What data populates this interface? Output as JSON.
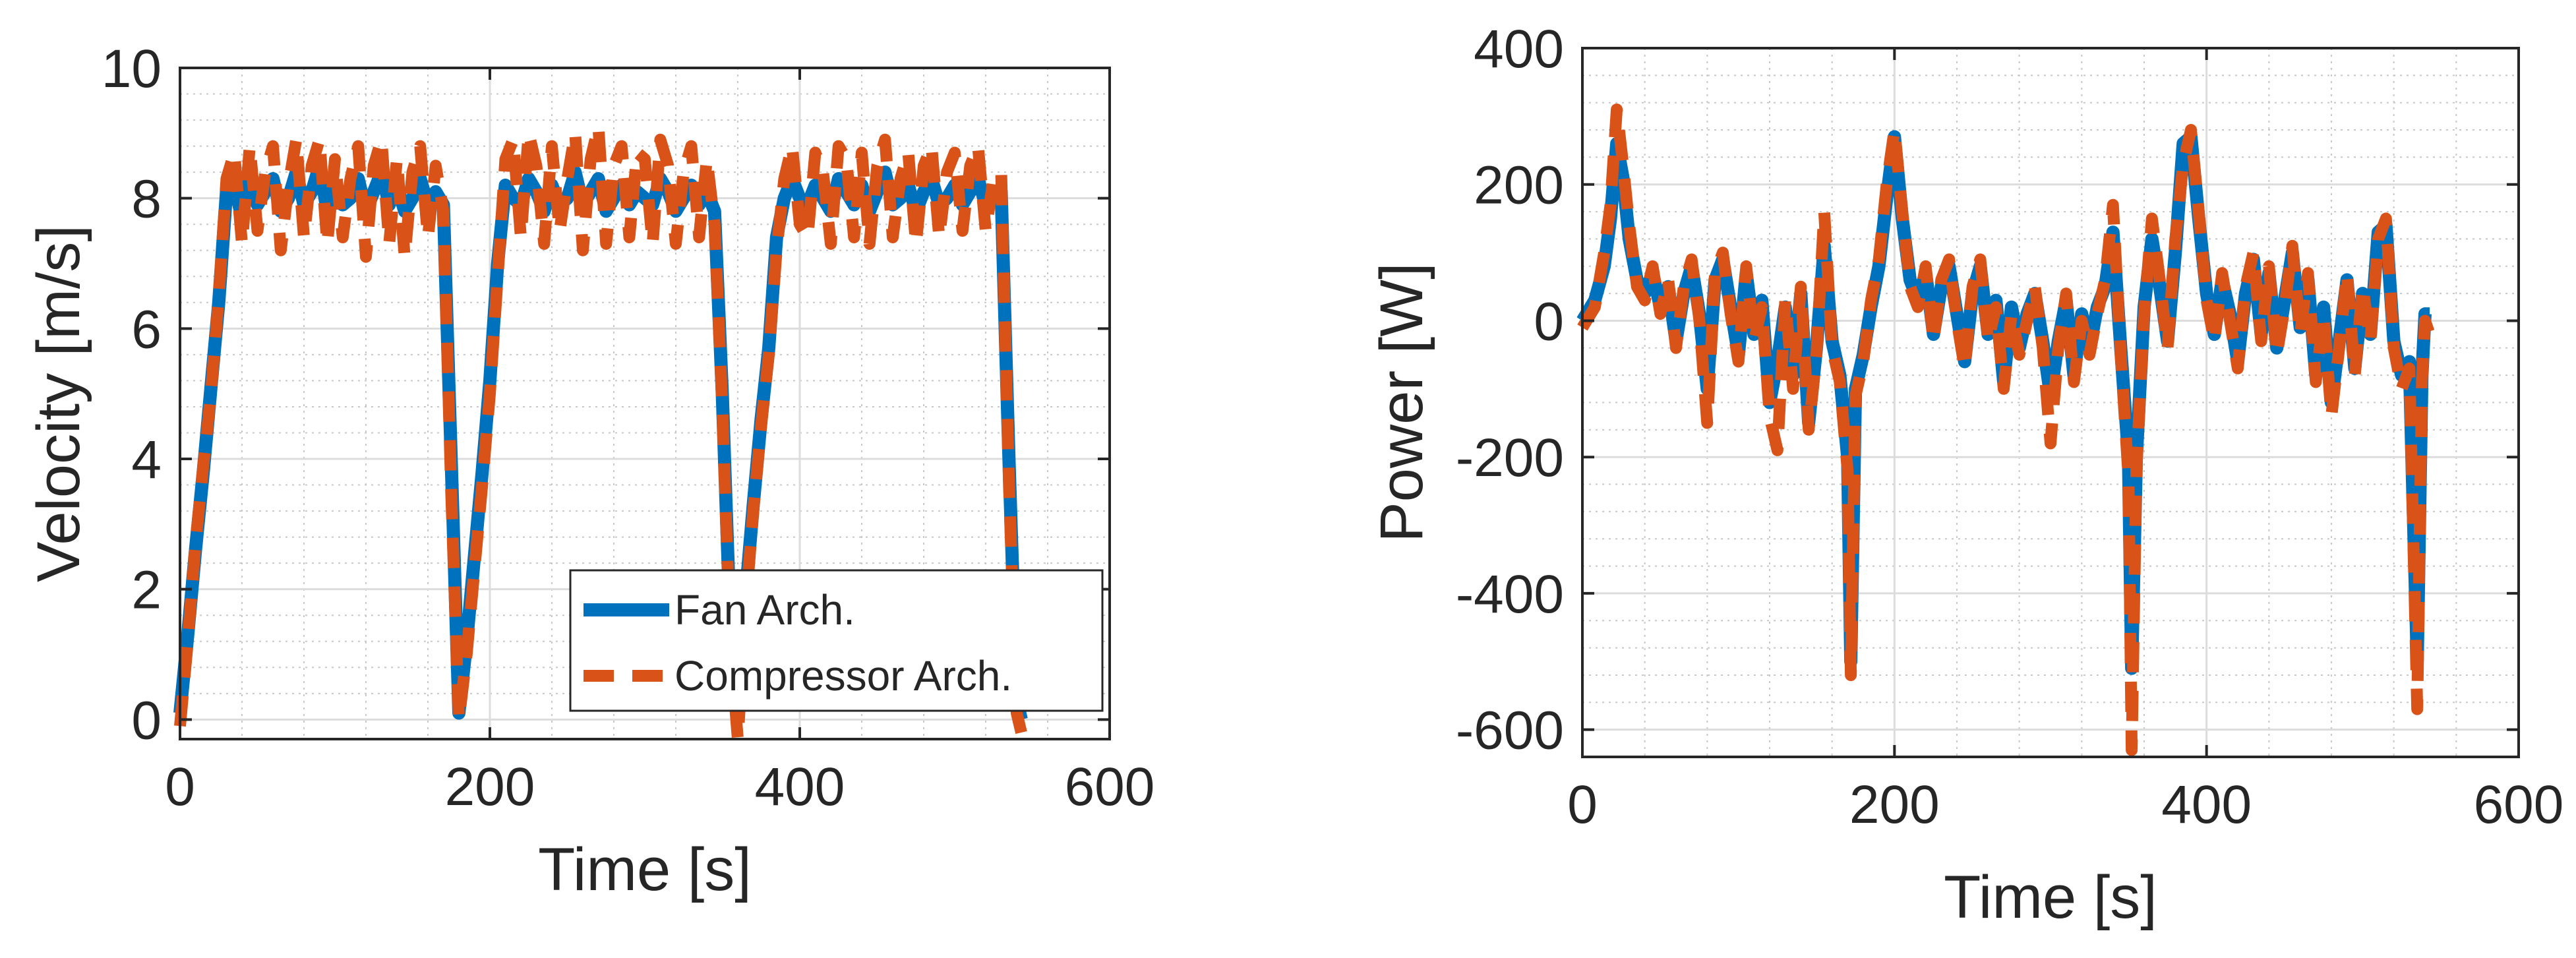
{
  "chart_data": [
    {
      "type": "line",
      "xlabel": "Time [s]",
      "ylabel": "Velocity [m/s]",
      "xlim": [
        0,
        600
      ],
      "ylim": [
        -0.3,
        10
      ],
      "xticks": [
        0,
        200,
        400,
        600
      ],
      "yticks": [
        0,
        2,
        4,
        6,
        8,
        10
      ],
      "xtick_labels": [
        "0",
        "200",
        "400",
        "600"
      ],
      "ytick_labels": [
        "0",
        "2",
        "4",
        "6",
        "8",
        "10"
      ],
      "grid": true,
      "minor_grid": true,
      "legend_position": "bottom-right",
      "series": [
        {
          "name": "Fan Arch.",
          "color": "#0072BD",
          "style": "solid",
          "x": [
            0,
            5,
            10,
            15,
            20,
            25,
            30,
            35,
            40,
            45,
            50,
            55,
            60,
            65,
            70,
            75,
            80,
            85,
            90,
            95,
            100,
            105,
            110,
            115,
            120,
            125,
            130,
            135,
            140,
            145,
            150,
            155,
            160,
            165,
            170,
            175,
            180,
            185,
            190,
            195,
            200,
            205,
            210,
            215,
            220,
            225,
            230,
            235,
            240,
            245,
            250,
            255,
            260,
            265,
            270,
            275,
            280,
            285,
            290,
            295,
            300,
            305,
            310,
            315,
            320,
            325,
            330,
            335,
            340,
            345,
            350,
            355,
            360,
            365,
            370,
            375,
            380,
            385,
            390,
            395,
            400,
            405,
            410,
            415,
            420,
            425,
            430,
            435,
            440,
            445,
            450,
            455,
            460,
            465,
            470,
            475,
            480,
            485,
            490,
            495,
            500,
            505,
            510,
            515,
            520,
            525,
            530,
            535,
            540,
            543
          ],
          "y": [
            0.1,
            1.3,
            2.6,
            3.8,
            5.1,
            6.4,
            8.1,
            8.2,
            7.7,
            8.3,
            7.9,
            8.1,
            8.3,
            7.8,
            8.0,
            8.4,
            7.9,
            8.1,
            8.5,
            7.8,
            8.2,
            7.9,
            8.0,
            8.3,
            7.8,
            8.1,
            8.4,
            7.9,
            8.2,
            7.8,
            8.0,
            8.3,
            7.9,
            8.1,
            7.9,
            4.0,
            0.1,
            1.2,
            2.5,
            3.8,
            5.2,
            7.0,
            8.2,
            8.0,
            7.9,
            8.3,
            8.1,
            7.8,
            8.2,
            7.9,
            8.0,
            8.4,
            7.9,
            8.1,
            8.3,
            7.8,
            8.0,
            8.2,
            7.9,
            8.1,
            8.0,
            7.9,
            8.3,
            8.1,
            7.8,
            8.0,
            8.2,
            7.9,
            8.1,
            7.8,
            5.0,
            1.5,
            0.1,
            1.9,
            3.3,
            4.6,
            5.7,
            7.4,
            8.0,
            8.3,
            8.0,
            7.9,
            8.2,
            8.0,
            7.8,
            8.3,
            8.1,
            7.9,
            8.2,
            7.8,
            8.1,
            8.4,
            7.9,
            8.0,
            8.2,
            7.8,
            8.1,
            8.3,
            7.9,
            8.0,
            8.2,
            7.9,
            8.1,
            8.3,
            7.9,
            8.0,
            8.1,
            4.0,
            0.3,
            0.0
          ]
        },
        {
          "name": "Compressor Arch.",
          "color": "#D95319",
          "style": "dashed",
          "x": [
            0,
            5,
            10,
            15,
            20,
            25,
            30,
            35,
            40,
            45,
            50,
            55,
            60,
            65,
            70,
            75,
            80,
            85,
            90,
            95,
            100,
            105,
            110,
            115,
            120,
            125,
            130,
            135,
            140,
            145,
            150,
            155,
            160,
            165,
            170,
            175,
            180,
            185,
            190,
            195,
            200,
            205,
            210,
            215,
            220,
            225,
            230,
            235,
            240,
            245,
            250,
            255,
            260,
            265,
            270,
            275,
            280,
            285,
            290,
            295,
            300,
            305,
            310,
            315,
            320,
            325,
            330,
            335,
            340,
            345,
            350,
            355,
            360,
            365,
            370,
            375,
            380,
            385,
            390,
            395,
            400,
            405,
            410,
            415,
            420,
            425,
            430,
            435,
            440,
            445,
            450,
            455,
            460,
            465,
            470,
            475,
            480,
            485,
            490,
            495,
            500,
            505,
            510,
            515,
            520,
            525,
            530,
            535,
            540,
            543
          ],
          "y": [
            -0.1,
            1.2,
            2.7,
            3.9,
            5.0,
            6.5,
            8.3,
            8.7,
            7.3,
            8.8,
            7.5,
            8.4,
            8.8,
            7.2,
            8.2,
            8.9,
            7.4,
            8.5,
            8.9,
            7.3,
            8.6,
            7.4,
            8.3,
            8.8,
            7.1,
            8.5,
            8.9,
            7.3,
            8.6,
            7.1,
            8.4,
            8.8,
            7.4,
            8.5,
            7.8,
            3.5,
            0.0,
            1.0,
            2.3,
            3.6,
            5.0,
            6.8,
            8.6,
            8.9,
            7.4,
            9.0,
            8.5,
            7.3,
            8.8,
            7.5,
            8.3,
            9.0,
            7.2,
            8.6,
            9.1,
            7.3,
            8.5,
            8.8,
            7.4,
            8.7,
            8.6,
            7.3,
            8.9,
            8.5,
            7.3,
            8.4,
            8.8,
            7.4,
            8.6,
            7.6,
            4.8,
            1.2,
            -0.3,
            1.7,
            3.2,
            4.5,
            5.6,
            7.2,
            8.3,
            8.8,
            7.6,
            7.4,
            8.7,
            8.4,
            7.3,
            8.8,
            8.6,
            7.4,
            8.7,
            7.3,
            8.5,
            8.9,
            7.4,
            8.3,
            8.7,
            7.3,
            8.5,
            8.8,
            7.4,
            8.4,
            8.7,
            7.5,
            8.5,
            8.8,
            7.5,
            8.3,
            8.4,
            3.6,
            0.1,
            -0.2
          ]
        }
      ]
    },
    {
      "type": "line",
      "xlabel": "Time [s]",
      "ylabel": "Power [W]",
      "xlim": [
        0,
        600
      ],
      "ylim": [
        -640,
        400
      ],
      "xticks": [
        0,
        200,
        400,
        600
      ],
      "yticks": [
        -600,
        -400,
        -200,
        0,
        200,
        400
      ],
      "xtick_labels": [
        "0",
        "200",
        "400",
        "600"
      ],
      "ytick_labels": [
        "-600",
        "-400",
        "-200",
        "0",
        "200",
        "400"
      ],
      "grid": true,
      "minor_grid": true,
      "series": [
        {
          "name": "Fan Arch.",
          "color": "#0072BD",
          "style": "solid",
          "x": [
            0,
            8,
            14,
            18,
            22,
            26,
            30,
            35,
            40,
            45,
            50,
            55,
            60,
            65,
            70,
            75,
            80,
            85,
            90,
            95,
            100,
            105,
            110,
            115,
            120,
            125,
            130,
            135,
            140,
            145,
            150,
            155,
            160,
            165,
            170,
            172,
            175,
            180,
            185,
            190,
            195,
            200,
            205,
            210,
            215,
            220,
            225,
            230,
            235,
            240,
            245,
            250,
            255,
            260,
            265,
            270,
            275,
            280,
            285,
            290,
            295,
            300,
            305,
            310,
            315,
            320,
            325,
            330,
            335,
            340,
            345,
            350,
            352,
            355,
            360,
            365,
            370,
            375,
            380,
            385,
            390,
            395,
            400,
            405,
            410,
            415,
            420,
            425,
            430,
            435,
            440,
            445,
            450,
            455,
            460,
            465,
            470,
            475,
            480,
            485,
            490,
            495,
            500,
            505,
            510,
            515,
            520,
            525,
            530,
            535,
            538,
            540,
            543
          ],
          "y": [
            0,
            30,
            80,
            150,
            260,
            210,
            120,
            60,
            40,
            70,
            20,
            50,
            -30,
            40,
            80,
            10,
            -100,
            60,
            90,
            20,
            -50,
            70,
            -20,
            30,
            -120,
            -60,
            20,
            -80,
            40,
            -150,
            -40,
            110,
            -30,
            -80,
            -200,
            -500,
            -100,
            -50,
            20,
            80,
            180,
            270,
            150,
            60,
            30,
            70,
            -20,
            50,
            80,
            10,
            -60,
            40,
            80,
            -20,
            30,
            -90,
            20,
            -40,
            10,
            40,
            -30,
            -110,
            -30,
            30,
            -80,
            10,
            -40,
            20,
            50,
            130,
            -40,
            -200,
            -510,
            -200,
            20,
            120,
            50,
            -30,
            100,
            260,
            270,
            150,
            40,
            -20,
            60,
            10,
            -60,
            40,
            90,
            -20,
            70,
            -40,
            30,
            100,
            -10,
            60,
            -80,
            20,
            -120,
            -30,
            60,
            -70,
            40,
            -20,
            130,
            140,
            -30,
            -80,
            -60,
            -500,
            -80,
            10,
            10
          ]
        },
        {
          "name": "Compressor Arch.",
          "color": "#D95319",
          "style": "dashed",
          "x": [
            0,
            8,
            14,
            18,
            22,
            26,
            30,
            35,
            40,
            45,
            50,
            55,
            60,
            65,
            70,
            75,
            80,
            85,
            90,
            95,
            100,
            105,
            110,
            115,
            120,
            125,
            130,
            135,
            140,
            145,
            150,
            155,
            160,
            165,
            170,
            172,
            175,
            180,
            185,
            190,
            195,
            200,
            205,
            210,
            215,
            220,
            225,
            230,
            235,
            240,
            245,
            250,
            255,
            260,
            265,
            270,
            275,
            280,
            285,
            290,
            295,
            300,
            305,
            310,
            315,
            320,
            325,
            330,
            335,
            340,
            345,
            350,
            352,
            355,
            360,
            365,
            370,
            375,
            380,
            385,
            390,
            395,
            400,
            405,
            410,
            415,
            420,
            425,
            430,
            435,
            440,
            445,
            450,
            455,
            460,
            465,
            470,
            475,
            480,
            485,
            490,
            495,
            500,
            505,
            510,
            515,
            520,
            525,
            530,
            535,
            538,
            540,
            543
          ],
          "y": [
            -10,
            20,
            100,
            170,
            310,
            230,
            140,
            50,
            30,
            80,
            10,
            60,
            -40,
            50,
            90,
            0,
            -150,
            70,
            100,
            10,
            -60,
            80,
            -30,
            20,
            -140,
            -190,
            30,
            -100,
            50,
            -160,
            -50,
            160,
            -40,
            -90,
            -220,
            -520,
            -110,
            -60,
            30,
            90,
            200,
            280,
            160,
            50,
            20,
            80,
            -30,
            60,
            90,
            0,
            -70,
            50,
            90,
            -30,
            20,
            -100,
            10,
            -50,
            0,
            50,
            -40,
            -180,
            -40,
            40,
            -90,
            0,
            -50,
            10,
            60,
            170,
            -50,
            -230,
            -630,
            -220,
            10,
            150,
            60,
            -40,
            120,
            230,
            280,
            160,
            30,
            -30,
            70,
            0,
            -70,
            50,
            100,
            -30,
            80,
            -50,
            20,
            110,
            -20,
            70,
            -90,
            10,
            -140,
            -40,
            70,
            -80,
            50,
            -30,
            120,
            150,
            -40,
            -100,
            -70,
            -570,
            -90,
            0,
            -20
          ]
        }
      ]
    }
  ]
}
